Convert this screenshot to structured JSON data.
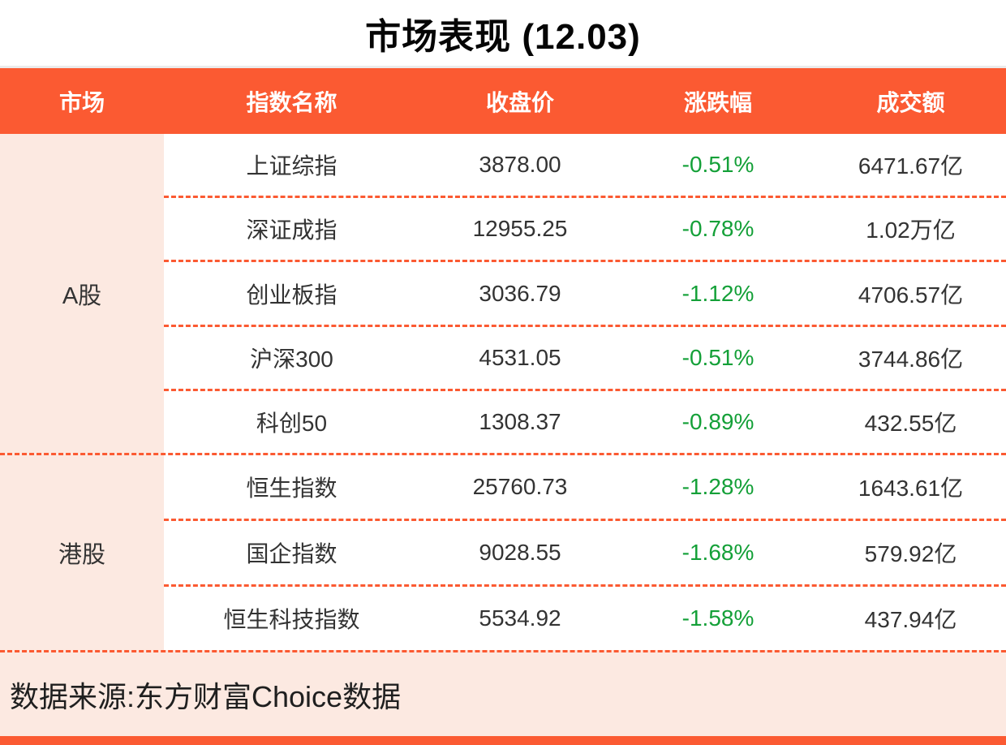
{
  "title": "市场表现 (12.03)",
  "chart_data": {
    "type": "table",
    "title": "市场表现 (12.03)",
    "columns": [
      "市场",
      "指数名称",
      "收盘价",
      "涨跌幅",
      "成交额"
    ],
    "groups": [
      {
        "market": "A股",
        "rows": [
          {
            "name": "上证综指",
            "close": "3878.00",
            "change": "-0.51%",
            "turnover": "6471.67亿"
          },
          {
            "name": "深证成指",
            "close": "12955.25",
            "change": "-0.78%",
            "turnover": "1.02万亿"
          },
          {
            "name": "创业板指",
            "close": "3036.79",
            "change": "-1.12%",
            "turnover": "4706.57亿"
          },
          {
            "name": "沪深300",
            "close": "4531.05",
            "change": "-0.51%",
            "turnover": "3744.86亿"
          },
          {
            "name": "科创50",
            "close": "1308.37",
            "change": "-0.89%",
            "turnover": "432.55亿"
          }
        ]
      },
      {
        "market": "港股",
        "rows": [
          {
            "name": "恒生指数",
            "close": "25760.73",
            "change": "-1.28%",
            "turnover": "1643.61亿"
          },
          {
            "name": "国企指数",
            "close": "9028.55",
            "change": "-1.68%",
            "turnover": "579.92亿"
          },
          {
            "name": "恒生科技指数",
            "close": "5534.92",
            "change": "-1.58%",
            "turnover": "437.94亿"
          }
        ]
      }
    ]
  },
  "footer": {
    "source": "数据来源:东方财富Choice数据"
  },
  "colors": {
    "accent_orange": "#FB5A32",
    "band_pink": "#FCE9E1",
    "negative_green": "#14A038",
    "text_dark": "#333333"
  }
}
